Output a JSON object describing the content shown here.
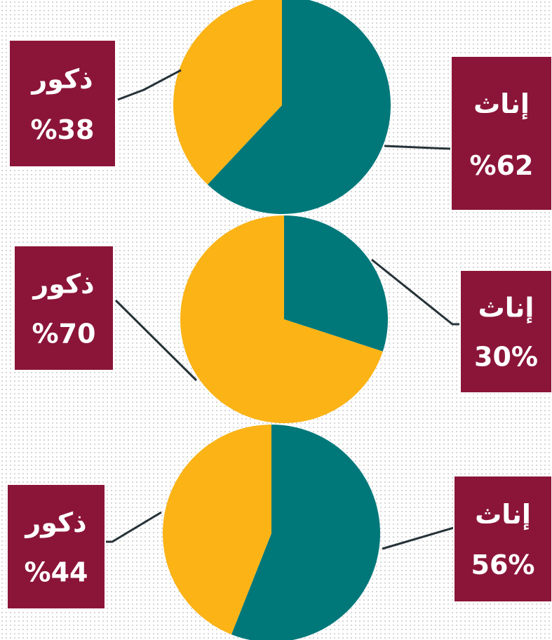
{
  "chart_data": [
    {
      "type": "pie",
      "categories": [
        "إناث",
        "ذكور"
      ],
      "values": [
        62,
        38
      ],
      "value_labels": [
        "%62",
        "%38"
      ],
      "colors": [
        "#00787a",
        "#fbb316"
      ]
    },
    {
      "type": "pie",
      "categories": [
        "إناث",
        "ذكور"
      ],
      "values": [
        30,
        70
      ],
      "value_labels": [
        "30%",
        "%70"
      ],
      "colors": [
        "#00787a",
        "#fbb316"
      ]
    },
    {
      "type": "pie",
      "categories": [
        "إناث",
        "ذكور"
      ],
      "values": [
        56,
        44
      ],
      "value_labels": [
        "56%",
        "%44"
      ],
      "colors": [
        "#00787a",
        "#fbb316"
      ]
    }
  ]
}
